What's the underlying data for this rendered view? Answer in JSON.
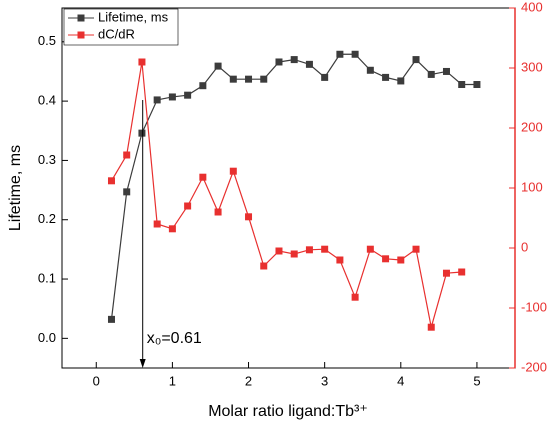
{
  "chart_data": {
    "type": "line",
    "xlabel": "Molar ratio ligand:Tb³⁺",
    "ylabel": "Lifetime, ms",
    "x": [
      0.2,
      0.4,
      0.6,
      0.8,
      1.0,
      1.2,
      1.4,
      1.6,
      1.8,
      2.0,
      2.2,
      2.4,
      2.6,
      2.8,
      3.0,
      3.2,
      3.4,
      3.6,
      3.8,
      4.0,
      4.2,
      4.4,
      4.6,
      4.8,
      5.0
    ],
    "series": [
      {
        "name": "Lifetime, ms",
        "color": "#3c3c3c",
        "values": [
          0.032,
          0.247,
          0.346,
          0.402,
          0.407,
          0.41,
          0.426,
          0.459,
          0.437,
          0.437,
          0.437,
          0.466,
          0.47,
          0.462,
          0.44,
          0.479,
          0.479,
          0.452,
          0.44,
          0.434,
          0.47,
          0.445,
          0.45,
          0.428,
          0.428
        ]
      },
      {
        "name": "dC/dR",
        "color": "#e8302f",
        "axis": "y2",
        "values": [
          112,
          155,
          310,
          40,
          32,
          70,
          118,
          60,
          128,
          52,
          -30,
          -5,
          -10,
          -3,
          -2,
          -20,
          -82,
          -2,
          -18,
          -20,
          -2,
          -132,
          -42,
          -40,
          null
        ]
      }
    ],
    "xlim": [
      -0.45,
      5.5
    ],
    "xticks": [
      0,
      1,
      2,
      3,
      4,
      5
    ],
    "ylim": [
      -0.05,
      0.557
    ],
    "yticks": [
      {
        "value": 0,
        "label": "0.0"
      },
      0.1,
      0.2,
      0.3,
      0.4,
      0.5
    ],
    "y2lim": [
      -200,
      400
    ],
    "y2ticks": [
      -200,
      -100,
      0,
      100,
      200,
      300,
      400
    ],
    "legend": "upper-left",
    "annotation": {
      "text": "x₀=0.61",
      "x": 0.61
    }
  }
}
